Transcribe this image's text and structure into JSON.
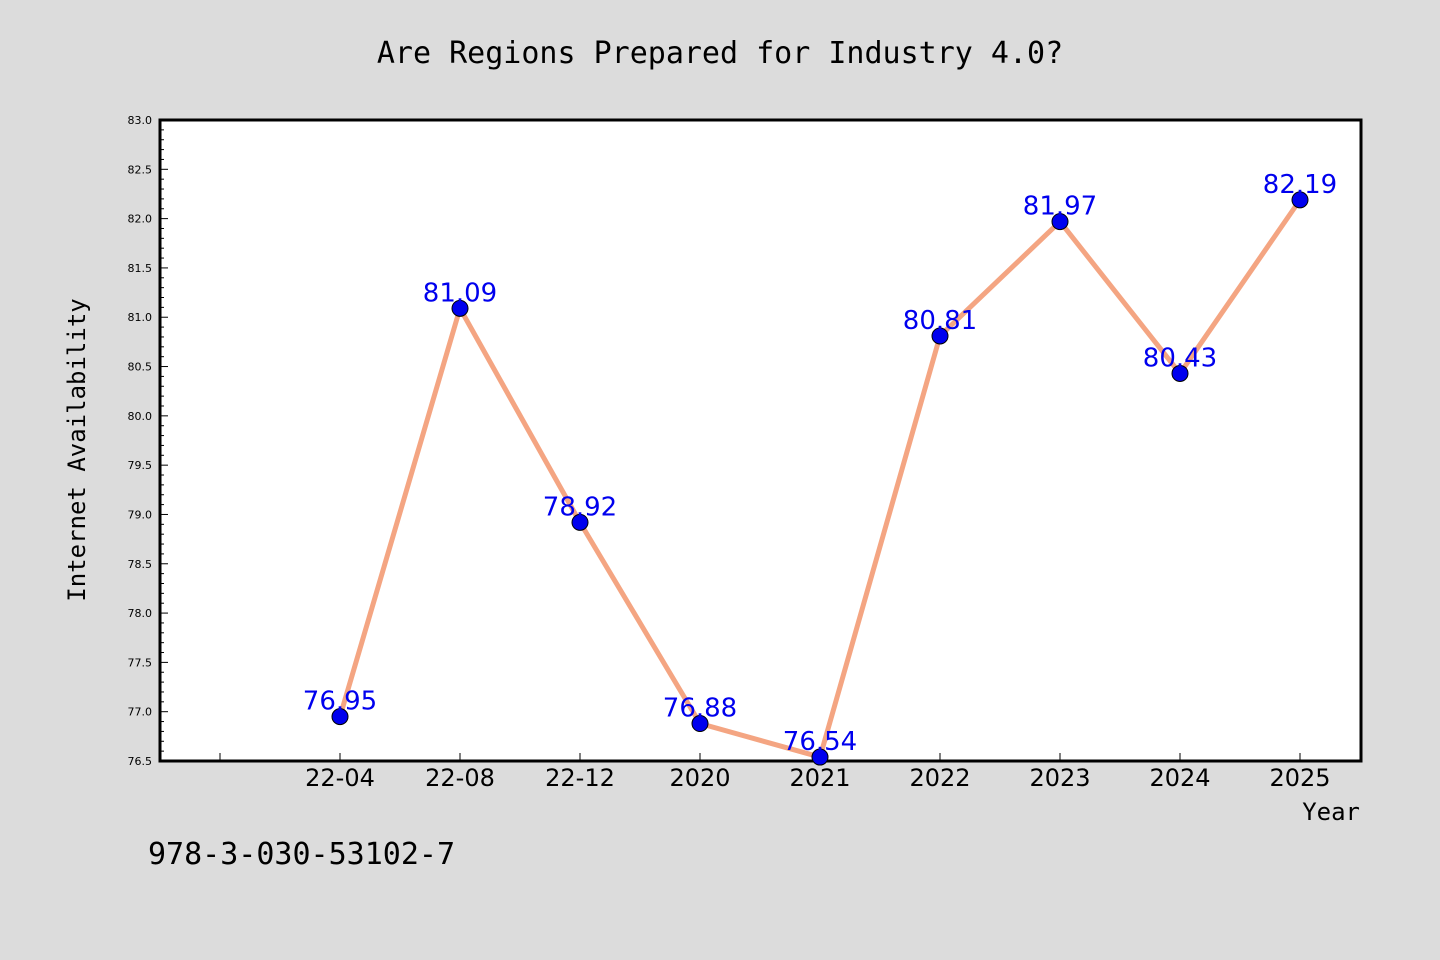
{
  "chart_data": {
    "type": "line",
    "title": "Are Regions Prepared for Industry 4.0?",
    "xlabel": "Year",
    "ylabel": "Internet Availability",
    "categories": [
      "22-04",
      "22-08",
      "22-12",
      "2020",
      "2021",
      "2022",
      "2023",
      "2024",
      "2025"
    ],
    "values": [
      76.95,
      81.09,
      78.92,
      76.88,
      76.54,
      80.81,
      81.97,
      80.43,
      82.19
    ],
    "data_labels": [
      "76.95",
      "81.09",
      "78.92",
      "76.88",
      "76.54",
      "80.81",
      "81.97",
      "80.43",
      "82.19"
    ],
    "ylim": [
      76.5,
      83.0
    ],
    "yticks": [
      "76.5",
      "77.0",
      "77.5",
      "78.0",
      "78.5",
      "79.0",
      "79.5",
      "80.0",
      "80.5",
      "81.0",
      "81.5",
      "82.0",
      "82.5",
      "83.0"
    ],
    "grid": false,
    "legend": "none",
    "colors": {
      "line": "#f4a582",
      "marker": "#0000ee",
      "data_label": "#0000ee",
      "background": "#dcdcdc",
      "plot_area": "#ffffff"
    }
  },
  "annotation": "978-3-030-53102-7"
}
